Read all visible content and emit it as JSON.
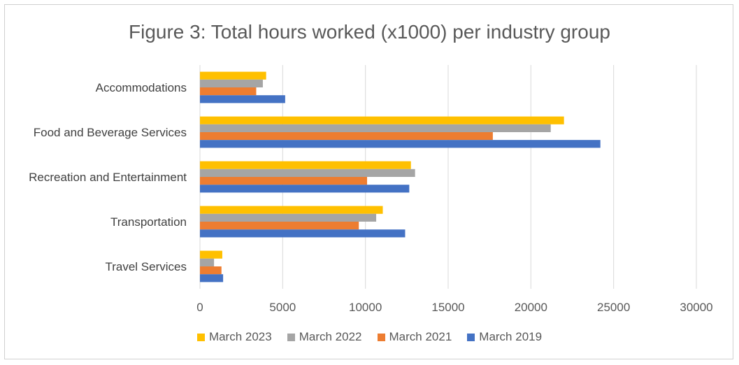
{
  "chart_data": {
    "type": "bar",
    "orientation": "horizontal",
    "title": "Figure 3: Total hours worked (x1000) per industry group",
    "categories": [
      "Accommodations",
      "Food and Beverage Services",
      "Recreation and Entertainment",
      "Transportation",
      "Travel Services"
    ],
    "series": [
      {
        "name": "March 2023",
        "color": "#FFC000",
        "values": [
          4000,
          22000,
          12750,
          11050,
          1350
        ]
      },
      {
        "name": "March 2022",
        "color": "#A5A5A5",
        "values": [
          3800,
          21200,
          13000,
          10650,
          850
        ]
      },
      {
        "name": "March 2021",
        "color": "#ED7D31",
        "values": [
          3400,
          17700,
          10100,
          9600,
          1300
        ]
      },
      {
        "name": "March 2019",
        "color": "#4472C4",
        "values": [
          5150,
          24200,
          12650,
          12400,
          1400
        ]
      }
    ],
    "xlim": [
      0,
      30000
    ],
    "xticks": [
      "0",
      "5000",
      "10000",
      "15000",
      "20000",
      "25000",
      "30000"
    ],
    "grid": true,
    "legend_position": "bottom"
  }
}
